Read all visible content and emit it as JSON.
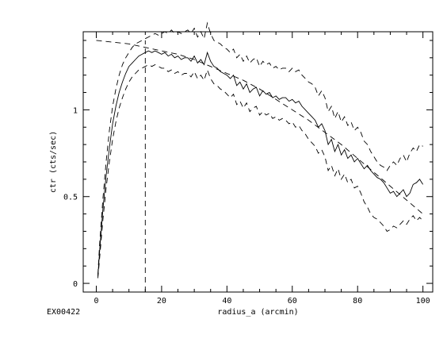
{
  "chart_data": {
    "type": "line",
    "title": "",
    "xlabel": "radius_a (arcmin)",
    "ylabel": "ctr (cts/sec)",
    "footnote": "EX00422",
    "xlim": [
      -4,
      103
    ],
    "ylim": [
      -0.05,
      1.45
    ],
    "x_ticks": [
      0,
      20,
      40,
      60,
      80,
      100
    ],
    "y_ticks": [
      0,
      0.5,
      1
    ],
    "y_tick_labels": [
      "0",
      "0.5",
      "1"
    ],
    "grid": false,
    "legend": "none",
    "vertical_marker": {
      "x": 15,
      "y_top": 1.4,
      "style": "dashed"
    },
    "series": [
      {
        "style": "solid",
        "x": [
          0.5,
          1,
          2,
          3,
          4,
          5,
          6,
          7,
          8,
          9,
          10,
          11,
          12,
          13,
          14,
          15,
          16,
          17,
          18,
          19,
          20,
          21,
          22,
          23,
          24,
          25,
          26,
          27,
          28,
          29,
          30,
          31,
          32,
          33,
          34,
          35,
          36,
          37,
          38,
          39,
          40,
          41,
          42,
          43,
          44,
          45,
          46,
          47,
          48,
          49,
          50,
          51,
          52,
          53,
          54,
          55,
          56,
          57,
          58,
          59,
          60,
          61,
          62,
          63,
          64,
          65,
          66,
          67,
          68,
          69,
          70,
          71,
          72,
          73,
          74,
          75,
          76,
          77,
          78,
          79,
          80,
          81,
          82,
          83,
          84,
          85,
          86,
          87,
          88,
          89,
          90,
          91,
          92,
          93,
          94,
          95,
          96,
          97,
          98,
          99,
          100
        ],
        "values": [
          0.04,
          0.18,
          0.42,
          0.62,
          0.78,
          0.92,
          1.02,
          1.1,
          1.16,
          1.21,
          1.25,
          1.27,
          1.29,
          1.31,
          1.32,
          1.33,
          1.34,
          1.33,
          1.34,
          1.33,
          1.32,
          1.33,
          1.31,
          1.32,
          1.3,
          1.31,
          1.29,
          1.3,
          1.3,
          1.28,
          1.31,
          1.27,
          1.29,
          1.26,
          1.33,
          1.28,
          1.25,
          1.24,
          1.22,
          1.21,
          1.2,
          1.18,
          1.2,
          1.14,
          1.16,
          1.12,
          1.15,
          1.1,
          1.12,
          1.13,
          1.08,
          1.11,
          1.09,
          1.1,
          1.07,
          1.08,
          1.06,
          1.07,
          1.07,
          1.05,
          1.06,
          1.04,
          1.05,
          1.02,
          1.0,
          0.98,
          0.96,
          0.94,
          0.9,
          0.92,
          0.88,
          0.8,
          0.83,
          0.76,
          0.8,
          0.74,
          0.77,
          0.72,
          0.74,
          0.7,
          0.72,
          0.69,
          0.66,
          0.68,
          0.65,
          0.63,
          0.61,
          0.6,
          0.58,
          0.55,
          0.52,
          0.53,
          0.5,
          0.52,
          0.54,
          0.5,
          0.52,
          0.57,
          0.58,
          0.6,
          0.57
        ]
      },
      {
        "style": "dashed",
        "x": [
          0.5,
          1,
          2,
          3,
          4,
          5,
          6,
          7,
          8,
          9,
          10,
          11,
          12,
          13,
          14,
          15,
          16,
          17,
          18,
          19,
          20,
          21,
          22,
          23,
          24,
          25,
          26,
          27,
          28,
          29,
          30,
          31,
          32,
          33,
          34,
          35,
          36,
          37,
          38,
          39,
          40,
          41,
          42,
          43,
          44,
          45,
          46,
          47,
          48,
          49,
          50,
          51,
          52,
          53,
          54,
          55,
          56,
          57,
          58,
          59,
          60,
          61,
          62,
          63,
          64,
          65,
          66,
          67,
          68,
          69,
          70,
          71,
          72,
          73,
          74,
          75,
          76,
          77,
          78,
          79,
          80,
          81,
          82,
          83,
          84,
          85,
          86,
          87,
          88,
          89,
          90,
          91,
          92,
          93,
          94,
          95,
          96,
          97,
          98,
          99,
          100
        ],
        "values": [
          0.05,
          0.22,
          0.48,
          0.7,
          0.88,
          1.02,
          1.12,
          1.2,
          1.26,
          1.3,
          1.33,
          1.36,
          1.38,
          1.39,
          1.4,
          1.41,
          1.42,
          1.43,
          1.44,
          1.43,
          1.44,
          1.45,
          1.44,
          1.46,
          1.44,
          1.45,
          1.44,
          1.45,
          1.46,
          1.44,
          1.47,
          1.42,
          1.45,
          1.41,
          1.5,
          1.44,
          1.4,
          1.39,
          1.38,
          1.36,
          1.35,
          1.33,
          1.35,
          1.3,
          1.32,
          1.28,
          1.31,
          1.27,
          1.29,
          1.3,
          1.25,
          1.28,
          1.26,
          1.27,
          1.24,
          1.25,
          1.23,
          1.24,
          1.24,
          1.22,
          1.24,
          1.22,
          1.23,
          1.2,
          1.18,
          1.16,
          1.15,
          1.13,
          1.08,
          1.11,
          1.07,
          0.99,
          1.02,
          0.95,
          0.99,
          0.93,
          0.96,
          0.91,
          0.93,
          0.88,
          0.9,
          0.87,
          0.82,
          0.8,
          0.76,
          0.73,
          0.7,
          0.68,
          0.67,
          0.65,
          0.68,
          0.7,
          0.68,
          0.72,
          0.74,
          0.7,
          0.75,
          0.78,
          0.76,
          0.8,
          0.79
        ]
      },
      {
        "style": "dashed",
        "x": [
          0.5,
          1,
          2,
          3,
          4,
          5,
          6,
          7,
          8,
          9,
          10,
          11,
          12,
          13,
          14,
          15,
          16,
          17,
          18,
          19,
          20,
          21,
          22,
          23,
          24,
          25,
          26,
          27,
          28,
          29,
          30,
          31,
          32,
          33,
          34,
          35,
          36,
          37,
          38,
          39,
          40,
          41,
          42,
          43,
          44,
          45,
          46,
          47,
          48,
          49,
          50,
          51,
          52,
          53,
          54,
          55,
          56,
          57,
          58,
          59,
          60,
          61,
          62,
          63,
          64,
          65,
          66,
          67,
          68,
          69,
          70,
          71,
          72,
          73,
          74,
          75,
          76,
          77,
          78,
          79,
          80,
          81,
          82,
          83,
          84,
          85,
          86,
          87,
          88,
          89,
          90,
          91,
          92,
          93,
          94,
          95,
          96,
          97,
          98,
          99,
          100
        ],
        "values": [
          0.03,
          0.14,
          0.36,
          0.55,
          0.7,
          0.83,
          0.93,
          1.01,
          1.07,
          1.12,
          1.16,
          1.19,
          1.21,
          1.23,
          1.24,
          1.25,
          1.26,
          1.25,
          1.26,
          1.25,
          1.24,
          1.24,
          1.22,
          1.23,
          1.21,
          1.22,
          1.2,
          1.21,
          1.21,
          1.19,
          1.22,
          1.18,
          1.2,
          1.17,
          1.23,
          1.18,
          1.15,
          1.14,
          1.12,
          1.11,
          1.09,
          1.07,
          1.09,
          1.03,
          1.05,
          1.01,
          1.04,
          0.99,
          1.01,
          1.02,
          0.97,
          0.99,
          0.97,
          0.98,
          0.95,
          0.96,
          0.94,
          0.95,
          0.94,
          0.92,
          0.93,
          0.9,
          0.91,
          0.88,
          0.86,
          0.83,
          0.81,
          0.79,
          0.75,
          0.77,
          0.73,
          0.65,
          0.68,
          0.62,
          0.66,
          0.6,
          0.63,
          0.58,
          0.6,
          0.55,
          0.56,
          0.52,
          0.47,
          0.44,
          0.4,
          0.38,
          0.37,
          0.35,
          0.33,
          0.3,
          0.31,
          0.33,
          0.32,
          0.34,
          0.36,
          0.34,
          0.37,
          0.39,
          0.36,
          0.38,
          0.36
        ]
      },
      {
        "style": "dashed",
        "x": [
          0,
          5,
          10,
          15,
          20,
          25,
          30,
          35,
          40,
          45,
          50,
          55,
          60,
          65,
          70,
          75,
          80,
          85,
          90,
          95,
          100
        ],
        "values": [
          1.4,
          1.39,
          1.38,
          1.36,
          1.34,
          1.32,
          1.29,
          1.25,
          1.21,
          1.17,
          1.12,
          1.06,
          1.0,
          0.94,
          0.87,
          0.8,
          0.72,
          0.64,
          0.56,
          0.48,
          0.4
        ]
      }
    ]
  }
}
